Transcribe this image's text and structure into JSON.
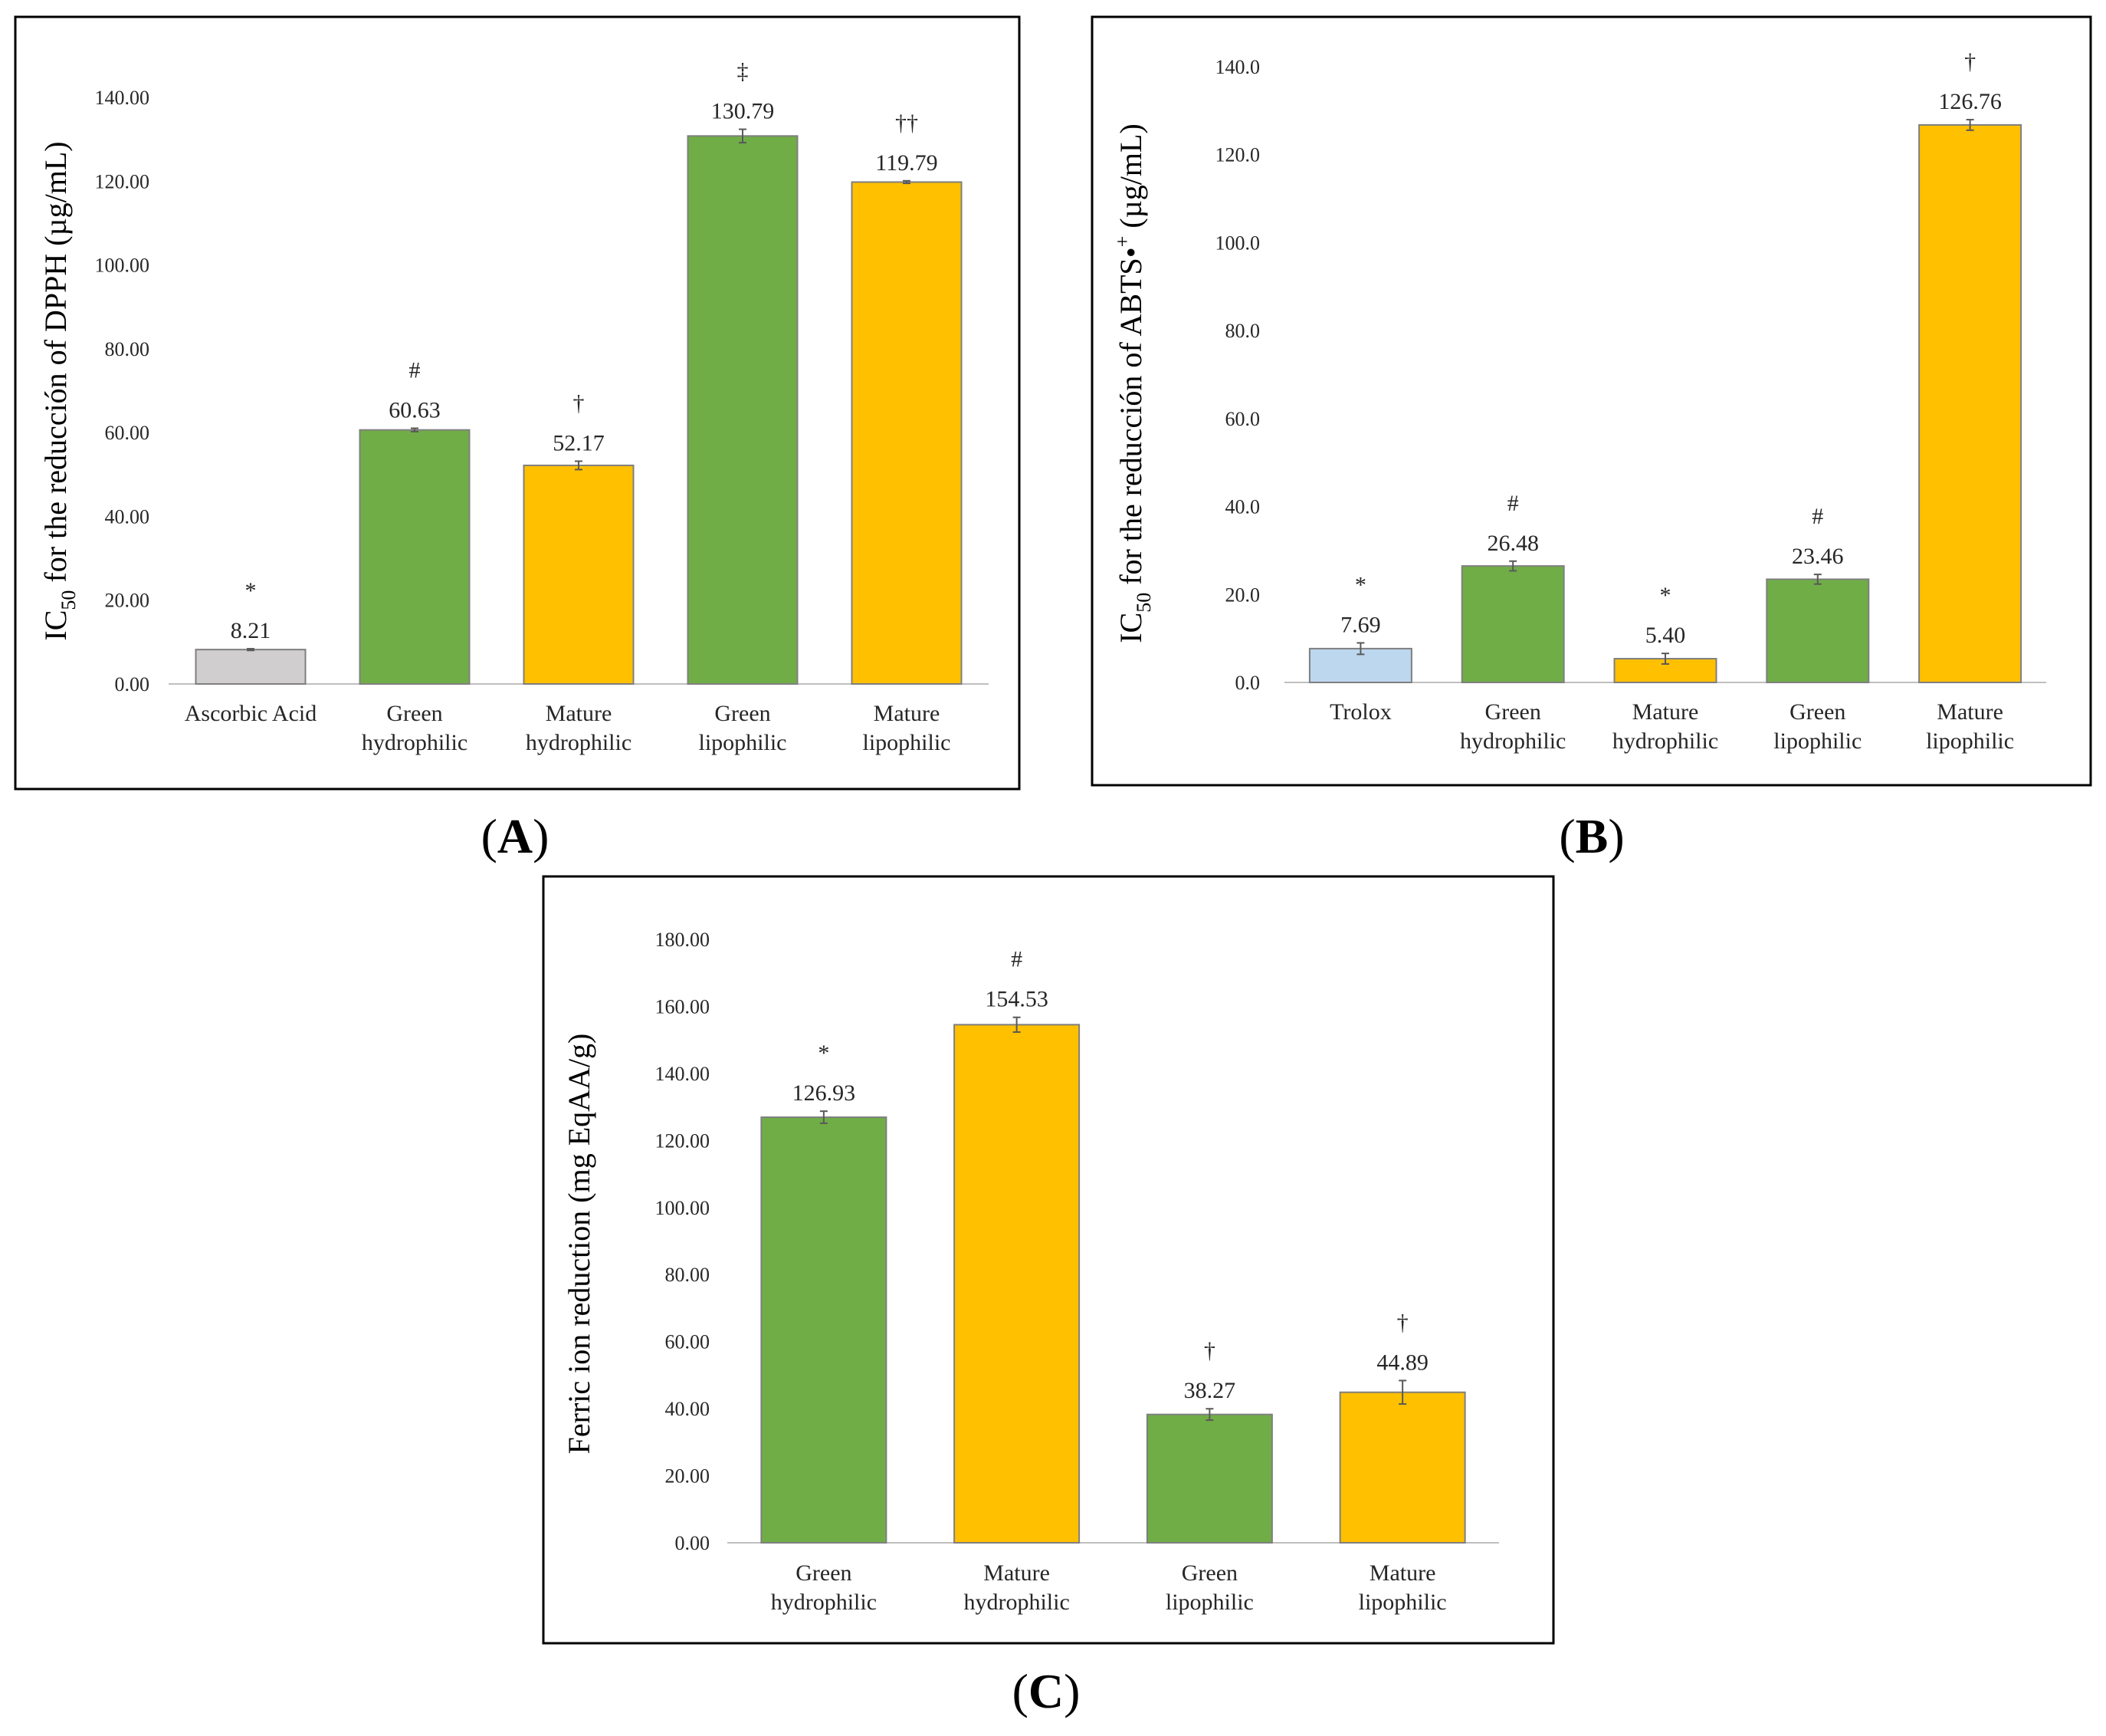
{
  "panels": [
    {
      "id": "A",
      "letter": "A",
      "title_main": "IC",
      "title_sub": "50",
      "title_rest": " for the reducción of  DPPH (µg/mL)",
      "colors": {
        "gray": "#d0cece",
        "green": "#70ad47",
        "yellow": "#ffc000",
        "lightblue": "#bdd7ee"
      }
    },
    {
      "id": "B",
      "letter": "B",
      "title_main": "IC",
      "title_sub": "50",
      "title_rest": " for the reducción of ABTS•",
      "title_sup": "+",
      "title_end": " (µg/mL)"
    },
    {
      "id": "C",
      "letter": "C",
      "title_main": "Ferric ion reduction (mg EqAA/g)"
    }
  ],
  "chart_data": [
    {
      "type": "bar",
      "panel": "A",
      "title": "",
      "ylabel": "IC50 for the reducción of DPPH (µg/mL)",
      "xlabel": "",
      "ylim": [
        0,
        140
      ],
      "ytick_step": 20,
      "ytick_labels": [
        "0.00",
        "20.00",
        "40.00",
        "60.00",
        "80.00",
        "100.00",
        "120.00",
        "140.00"
      ],
      "categories": [
        [
          "Ascorbic Acid"
        ],
        [
          "Green",
          "hydrophilic"
        ],
        [
          "Mature",
          "hydrophilic"
        ],
        [
          "Green",
          "lipophilic"
        ],
        [
          "Mature",
          "lipophilic"
        ]
      ],
      "values": [
        8.21,
        60.63,
        52.17,
        130.79,
        119.79
      ],
      "value_labels": [
        "8.21",
        "60.63",
        "52.17",
        "130.79",
        "119.79"
      ],
      "errors": [
        0.2,
        0.4,
        1.0,
        1.6,
        0.3
      ],
      "significance": [
        "*",
        "#",
        "†",
        "‡",
        "††"
      ],
      "bar_colors": [
        "#d0cece",
        "#70ad47",
        "#ffc000",
        "#70ad47",
        "#ffc000"
      ]
    },
    {
      "type": "bar",
      "panel": "B",
      "title": "",
      "ylabel": "IC50 for the reducción of ABTS•+ (µg/mL)",
      "xlabel": "",
      "ylim": [
        0,
        140
      ],
      "ytick_step": 20,
      "ytick_labels": [
        "0.0",
        "20.0",
        "40.0",
        "60.0",
        "80.0",
        "100.0",
        "120.0",
        "140.0"
      ],
      "categories": [
        [
          "Trolox"
        ],
        [
          "Green",
          "hydrophilic"
        ],
        [
          "Mature",
          "hydrophilic"
        ],
        [
          "Green",
          "lipophilic"
        ],
        [
          "Mature",
          "lipophilic"
        ]
      ],
      "values": [
        7.69,
        26.48,
        5.4,
        23.46,
        126.76
      ],
      "value_labels": [
        "7.69",
        "26.48",
        "5.40",
        "23.46",
        "126.76"
      ],
      "errors": [
        1.3,
        1.1,
        1.2,
        1.1,
        1.2
      ],
      "significance": [
        "*",
        "#",
        "*",
        "#",
        "†"
      ],
      "bar_colors": [
        "#bdd7ee",
        "#70ad47",
        "#ffc000",
        "#70ad47",
        "#ffc000"
      ]
    },
    {
      "type": "bar",
      "panel": "C",
      "title": "",
      "ylabel": "Ferric ion reduction (mg EqAA/g)",
      "xlabel": "",
      "ylim": [
        0,
        180
      ],
      "ytick_step": 20,
      "ytick_labels": [
        "0.00",
        "20.00",
        "40.00",
        "60.00",
        "80.00",
        "100.00",
        "120.00",
        "140.00",
        "160.00",
        "180.00"
      ],
      "categories": [
        [
          "Green",
          "hydrophilic"
        ],
        [
          "Mature",
          "hydrophilic"
        ],
        [
          "Green",
          "lipophilic"
        ],
        [
          "Mature",
          "lipophilic"
        ]
      ],
      "values": [
        126.93,
        154.53,
        38.27,
        44.89
      ],
      "value_labels": [
        "126.93",
        "154.53",
        "38.27",
        "44.89"
      ],
      "errors": [
        1.8,
        2.2,
        1.7,
        3.5
      ],
      "significance": [
        "*",
        "#",
        "†",
        "†"
      ],
      "bar_colors": [
        "#70ad47",
        "#ffc000",
        "#70ad47",
        "#ffc000"
      ]
    }
  ]
}
